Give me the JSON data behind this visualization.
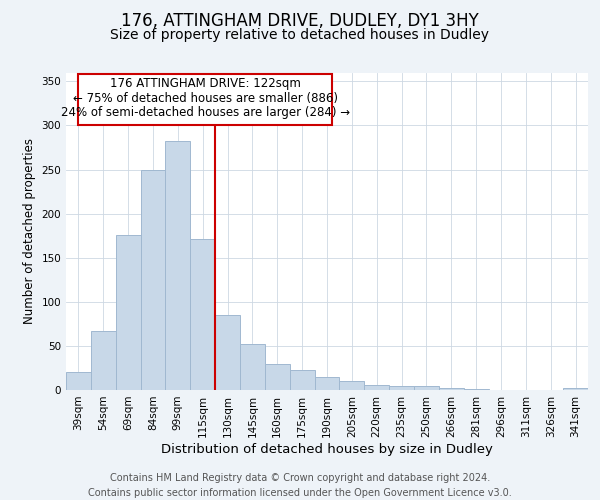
{
  "title": "176, ATTINGHAM DRIVE, DUDLEY, DY1 3HY",
  "subtitle": "Size of property relative to detached houses in Dudley",
  "xlabel": "Distribution of detached houses by size in Dudley",
  "ylabel": "Number of detached properties",
  "categories": [
    "39sqm",
    "54sqm",
    "69sqm",
    "84sqm",
    "99sqm",
    "115sqm",
    "130sqm",
    "145sqm",
    "160sqm",
    "175sqm",
    "190sqm",
    "205sqm",
    "220sqm",
    "235sqm",
    "250sqm",
    "266sqm",
    "281sqm",
    "296sqm",
    "311sqm",
    "326sqm",
    "341sqm"
  ],
  "values": [
    20,
    67,
    176,
    249,
    282,
    171,
    85,
    52,
    29,
    23,
    15,
    10,
    6,
    4,
    4,
    2,
    1,
    0,
    0,
    0,
    2
  ],
  "bar_color": "#c8d8e8",
  "bar_edge_color": "#a0b8d0",
  "vline_x": 5.5,
  "vline_color": "#cc0000",
  "ylim": [
    0,
    360
  ],
  "yticks": [
    0,
    50,
    100,
    150,
    200,
    250,
    300,
    350
  ],
  "annotation_title": "176 ATTINGHAM DRIVE: 122sqm",
  "annotation_line1": "← 75% of detached houses are smaller (886)",
  "annotation_line2": "24% of semi-detached houses are larger (284) →",
  "annotation_box_color": "#ffffff",
  "annotation_box_edge": "#cc0000",
  "footer1": "Contains HM Land Registry data © Crown copyright and database right 2024.",
  "footer2": "Contains public sector information licensed under the Open Government Licence v3.0.",
  "background_color": "#eef3f8",
  "plot_bg_color": "#ffffff",
  "title_fontsize": 12,
  "subtitle_fontsize": 10,
  "xlabel_fontsize": 9.5,
  "ylabel_fontsize": 8.5,
  "tick_fontsize": 7.5,
  "footer_fontsize": 7,
  "annotation_fontsize": 8.5
}
